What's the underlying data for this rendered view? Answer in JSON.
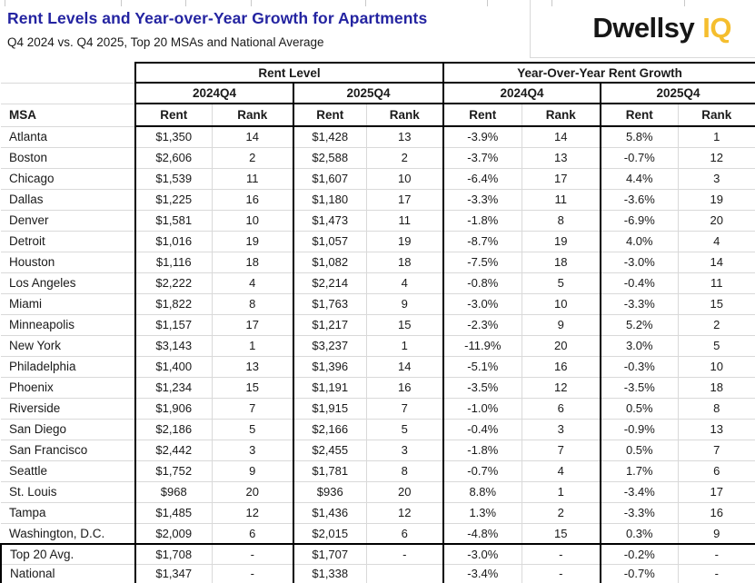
{
  "header": {
    "title": "Rent Levels and Year-over-Year Growth for Apartments",
    "subtitle": "Q4 2024 vs. Q4 2025, Top 20 MSAs and National Average",
    "logo": {
      "brand": "Dwellsy",
      "suffix": "IQ"
    }
  },
  "colors": {
    "title_blue": "#2424a1",
    "logo_black": "#161616",
    "logo_yellow": "#f5be2e",
    "gridline_gray": "#d9d9d9",
    "border_black": "#000000"
  },
  "table": {
    "group_headers": [
      "Rent Level",
      "Year-Over-Year Rent Growth"
    ],
    "period_headers": [
      "2024Q4",
      "2025Q4",
      "2024Q4",
      "2025Q4"
    ],
    "msa_header": "MSA",
    "sub_headers": [
      "Rent",
      "Rank",
      "Rent",
      "Rank",
      "Rent",
      "Rank",
      "Rent",
      "Rank"
    ],
    "rows": [
      {
        "msa": "Atlanta",
        "cells": [
          "$1,350",
          "14",
          "$1,428",
          "13",
          "-3.9%",
          "14",
          "5.8%",
          "1"
        ]
      },
      {
        "msa": "Boston",
        "cells": [
          "$2,606",
          "2",
          "$2,588",
          "2",
          "-3.7%",
          "13",
          "-0.7%",
          "12"
        ]
      },
      {
        "msa": "Chicago",
        "cells": [
          "$1,539",
          "11",
          "$1,607",
          "10",
          "-6.4%",
          "17",
          "4.4%",
          "3"
        ]
      },
      {
        "msa": "Dallas",
        "cells": [
          "$1,225",
          "16",
          "$1,180",
          "17",
          "-3.3%",
          "11",
          "-3.6%",
          "19"
        ]
      },
      {
        "msa": "Denver",
        "cells": [
          "$1,581",
          "10",
          "$1,473",
          "11",
          "-1.8%",
          "8",
          "-6.9%",
          "20"
        ]
      },
      {
        "msa": "Detroit",
        "cells": [
          "$1,016",
          "19",
          "$1,057",
          "19",
          "-8.7%",
          "19",
          "4.0%",
          "4"
        ]
      },
      {
        "msa": "Houston",
        "cells": [
          "$1,116",
          "18",
          "$1,082",
          "18",
          "-7.5%",
          "18",
          "-3.0%",
          "14"
        ]
      },
      {
        "msa": "Los Angeles",
        "cells": [
          "$2,222",
          "4",
          "$2,214",
          "4",
          "-0.8%",
          "5",
          "-0.4%",
          "11"
        ]
      },
      {
        "msa": "Miami",
        "cells": [
          "$1,822",
          "8",
          "$1,763",
          "9",
          "-3.0%",
          "10",
          "-3.3%",
          "15"
        ]
      },
      {
        "msa": "Minneapolis",
        "cells": [
          "$1,157",
          "17",
          "$1,217",
          "15",
          "-2.3%",
          "9",
          "5.2%",
          "2"
        ]
      },
      {
        "msa": "New York",
        "cells": [
          "$3,143",
          "1",
          "$3,237",
          "1",
          "-11.9%",
          "20",
          "3.0%",
          "5"
        ]
      },
      {
        "msa": "Philadelphia",
        "cells": [
          "$1,400",
          "13",
          "$1,396",
          "14",
          "-5.1%",
          "16",
          "-0.3%",
          "10"
        ]
      },
      {
        "msa": "Phoenix",
        "cells": [
          "$1,234",
          "15",
          "$1,191",
          "16",
          "-3.5%",
          "12",
          "-3.5%",
          "18"
        ]
      },
      {
        "msa": "Riverside",
        "cells": [
          "$1,906",
          "7",
          "$1,915",
          "7",
          "-1.0%",
          "6",
          "0.5%",
          "8"
        ]
      },
      {
        "msa": "San Diego",
        "cells": [
          "$2,186",
          "5",
          "$2,166",
          "5",
          "-0.4%",
          "3",
          "-0.9%",
          "13"
        ]
      },
      {
        "msa": "San Francisco",
        "cells": [
          "$2,442",
          "3",
          "$2,455",
          "3",
          "-1.8%",
          "7",
          "0.5%",
          "7"
        ]
      },
      {
        "msa": "Seattle",
        "cells": [
          "$1,752",
          "9",
          "$1,781",
          "8",
          "-0.7%",
          "4",
          "1.7%",
          "6"
        ]
      },
      {
        "msa": "St. Louis",
        "cells": [
          "$968",
          "20",
          "$936",
          "20",
          "8.8%",
          "1",
          "-3.4%",
          "17"
        ]
      },
      {
        "msa": "Tampa",
        "cells": [
          "$1,485",
          "12",
          "$1,436",
          "12",
          "1.3%",
          "2",
          "-3.3%",
          "16"
        ]
      },
      {
        "msa": "Washington, D.C.",
        "cells": [
          "$2,009",
          "6",
          "$2,015",
          "6",
          "-4.8%",
          "15",
          "0.3%",
          "9"
        ]
      }
    ],
    "summary_rows": [
      {
        "msa": "Top 20 Avg.",
        "cells": [
          "$1,708",
          "-",
          "$1,707",
          "-",
          "-3.0%",
          "-",
          "-0.2%",
          "-"
        ]
      },
      {
        "msa": "National",
        "cells": [
          "$1,347",
          "-",
          "$1,338",
          "",
          "-3.4%",
          "-",
          "-0.7%",
          "-"
        ]
      }
    ]
  },
  "chart_data": {
    "type": "table",
    "title": "Rent Levels and Year-over-Year Growth for Apartments",
    "subtitle": "Q4 2024 vs. Q4 2025, Top 20 MSAs and National Average",
    "columns": [
      "MSA",
      "Rent Level 2024Q4 Rent ($)",
      "Rent Level 2024Q4 Rank",
      "Rent Level 2025Q4 Rent ($)",
      "Rent Level 2025Q4 Rank",
      "YoY Rent Growth 2024Q4 (%)",
      "YoY Growth 2024Q4 Rank",
      "YoY Rent Growth 2025Q4 (%)",
      "YoY Growth 2025Q4 Rank"
    ],
    "rows": [
      [
        "Atlanta",
        1350,
        14,
        1428,
        13,
        -3.9,
        14,
        5.8,
        1
      ],
      [
        "Boston",
        2606,
        2,
        2588,
        2,
        -3.7,
        13,
        -0.7,
        12
      ],
      [
        "Chicago",
        1539,
        11,
        1607,
        10,
        -6.4,
        17,
        4.4,
        3
      ],
      [
        "Dallas",
        1225,
        16,
        1180,
        17,
        -3.3,
        11,
        -3.6,
        19
      ],
      [
        "Denver",
        1581,
        10,
        1473,
        11,
        -1.8,
        8,
        -6.9,
        20
      ],
      [
        "Detroit",
        1016,
        19,
        1057,
        19,
        -8.7,
        19,
        4.0,
        4
      ],
      [
        "Houston",
        1116,
        18,
        1082,
        18,
        -7.5,
        18,
        -3.0,
        14
      ],
      [
        "Los Angeles",
        2222,
        4,
        2214,
        4,
        -0.8,
        5,
        -0.4,
        11
      ],
      [
        "Miami",
        1822,
        8,
        1763,
        9,
        -3.0,
        10,
        -3.3,
        15
      ],
      [
        "Minneapolis",
        1157,
        17,
        1217,
        15,
        -2.3,
        9,
        5.2,
        2
      ],
      [
        "New York",
        3143,
        1,
        3237,
        1,
        -11.9,
        20,
        3.0,
        5
      ],
      [
        "Philadelphia",
        1400,
        13,
        1396,
        14,
        -5.1,
        16,
        -0.3,
        10
      ],
      [
        "Phoenix",
        1234,
        15,
        1191,
        16,
        -3.5,
        12,
        -3.5,
        18
      ],
      [
        "Riverside",
        1906,
        7,
        1915,
        7,
        -1.0,
        6,
        0.5,
        8
      ],
      [
        "San Diego",
        2186,
        5,
        2166,
        5,
        -0.4,
        3,
        -0.9,
        13
      ],
      [
        "San Francisco",
        2442,
        3,
        2455,
        3,
        -1.8,
        7,
        0.5,
        7
      ],
      [
        "Seattle",
        1752,
        9,
        1781,
        8,
        -0.7,
        4,
        1.7,
        6
      ],
      [
        "St. Louis",
        968,
        20,
        936,
        20,
        8.8,
        1,
        -3.4,
        17
      ],
      [
        "Tampa",
        1485,
        12,
        1436,
        12,
        1.3,
        2,
        -3.3,
        16
      ],
      [
        "Washington, D.C.",
        2009,
        6,
        2015,
        6,
        -4.8,
        15,
        0.3,
        9
      ],
      [
        "Top 20 Avg.",
        1708,
        null,
        1707,
        null,
        -3.0,
        null,
        -0.2,
        null
      ],
      [
        "National",
        1347,
        null,
        1338,
        null,
        -3.4,
        null,
        -0.7,
        null
      ]
    ]
  }
}
